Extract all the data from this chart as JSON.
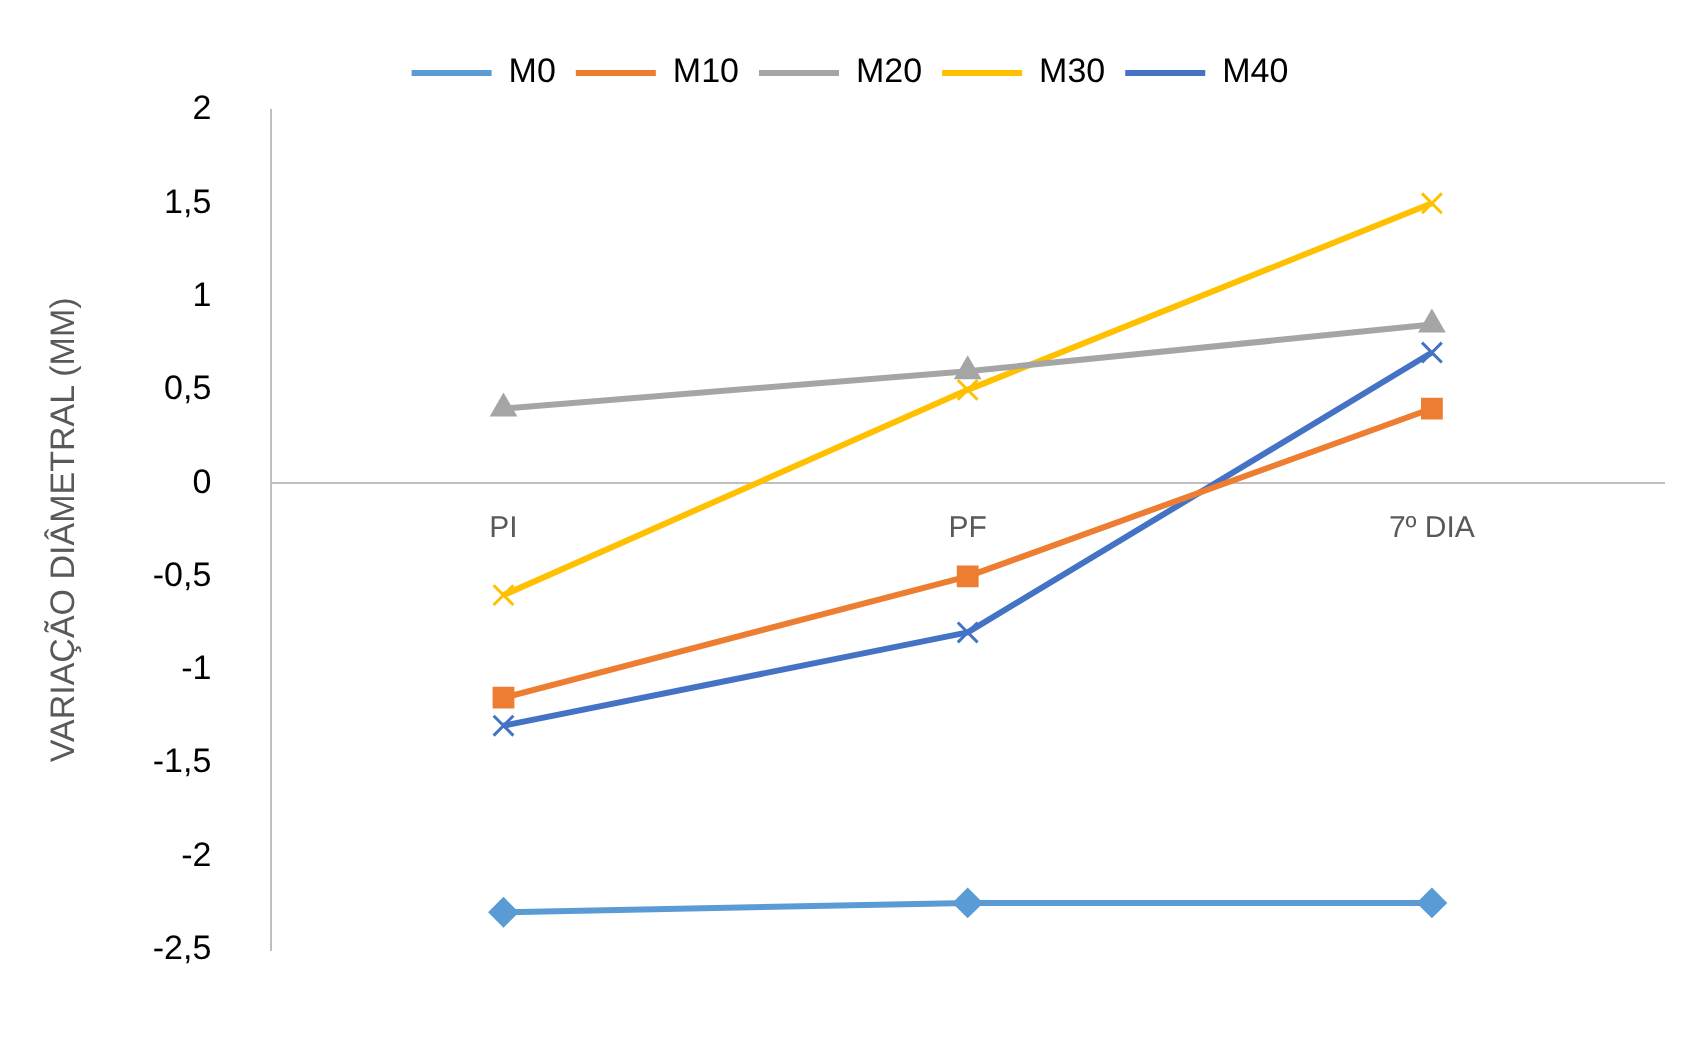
{
  "chart_data": {
    "type": "line",
    "ylabel": "VARIAÇÃO DIÂMETRAL (MM)",
    "categories": [
      "PI",
      "PF",
      "7º DIA"
    ],
    "series": [
      {
        "name": "M0",
        "color": "#5b9bd5",
        "marker": "diamond",
        "values": [
          -2.3,
          -2.25,
          -2.25
        ]
      },
      {
        "name": "M10",
        "color": "#ed7d31",
        "marker": "square",
        "values": [
          -1.15,
          -0.5,
          0.4
        ]
      },
      {
        "name": "M20",
        "color": "#a5a5a5",
        "marker": "triangle",
        "values": [
          0.4,
          0.6,
          0.85
        ]
      },
      {
        "name": "M30",
        "color": "#ffc000",
        "marker": "cross",
        "values": [
          -0.6,
          0.5,
          1.5
        ]
      },
      {
        "name": "M40",
        "color": "#4472c4",
        "marker": "cross",
        "values": [
          -1.3,
          -0.8,
          0.7
        ]
      }
    ],
    "ylim": [
      -2.5,
      2
    ],
    "yticks": [
      {
        "value": -2.5,
        "label": "-2,5"
      },
      {
        "value": -2,
        "label": "-2"
      },
      {
        "value": -1.5,
        "label": "-1,5"
      },
      {
        "value": -1,
        "label": "-1"
      },
      {
        "value": -0.5,
        "label": "-0,5"
      },
      {
        "value": 0,
        "label": "0"
      },
      {
        "value": 0.5,
        "label": "0,5"
      },
      {
        "value": 1,
        "label": "1"
      },
      {
        "value": 1.5,
        "label": "1,5"
      },
      {
        "value": 2,
        "label": "2"
      }
    ],
    "grid": false,
    "legend": "top"
  }
}
